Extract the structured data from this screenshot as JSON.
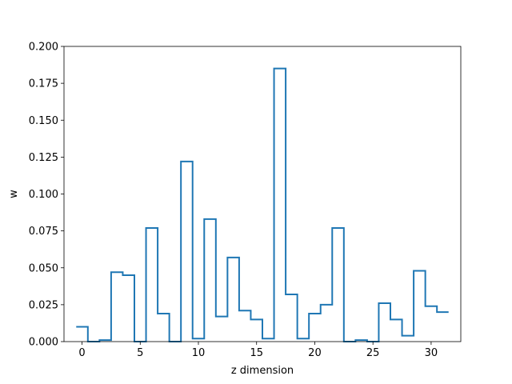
{
  "chart_data": {
    "type": "line",
    "style": "step",
    "xlabel": "z dimension",
    "ylabel": "w",
    "xlim": [
      -1.55,
      32.55
    ],
    "ylim": [
      0,
      0.2
    ],
    "xticks": [
      0,
      5,
      10,
      15,
      20,
      25,
      30
    ],
    "yticks": [
      0.0,
      0.025,
      0.05,
      0.075,
      0.1,
      0.125,
      0.15,
      0.175,
      0.2
    ],
    "xtick_labels": [
      "0",
      "5",
      "10",
      "15",
      "20",
      "25",
      "30"
    ],
    "ytick_labels": [
      "0.000",
      "0.025",
      "0.050",
      "0.075",
      "0.100",
      "0.125",
      "0.150",
      "0.175",
      "0.200"
    ],
    "grid": false,
    "colors": {
      "series": "#1f77b4",
      "axes": "#000000"
    },
    "series": [
      {
        "x": [
          0,
          1,
          2,
          3,
          4,
          5,
          6,
          7,
          8,
          9,
          10,
          11,
          12,
          13,
          14,
          15,
          16,
          17,
          18,
          19,
          20,
          21,
          22,
          23,
          24,
          25,
          26,
          27,
          28,
          29,
          30,
          31
        ],
        "values": [
          0.01,
          0.0,
          0.001,
          0.047,
          0.045,
          0.0,
          0.077,
          0.019,
          0.0,
          0.122,
          0.002,
          0.083,
          0.017,
          0.057,
          0.021,
          0.015,
          0.002,
          0.185,
          0.032,
          0.002,
          0.019,
          0.025,
          0.077,
          0.0,
          0.001,
          0.0,
          0.026,
          0.015,
          0.004,
          0.048,
          0.024,
          0.02
        ]
      }
    ]
  }
}
